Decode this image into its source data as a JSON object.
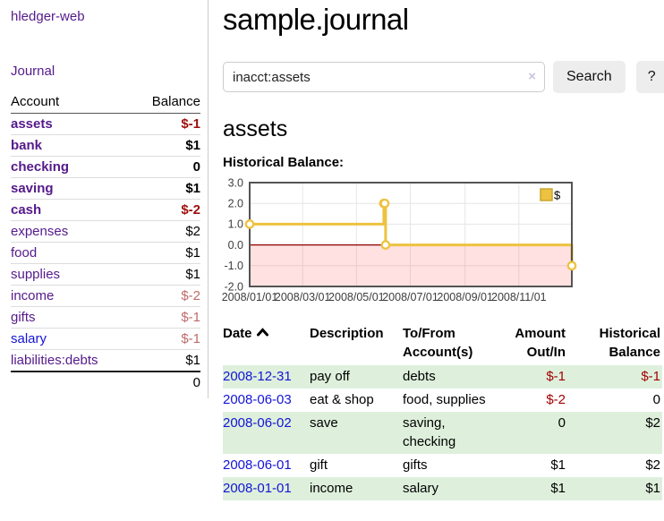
{
  "colors": {
    "link_visited_purple": "#551a8b",
    "link_blue": "#1414d6",
    "negative_strong": "#9e0e0e",
    "negative_muted": "#c06a6a",
    "negative_table": "#a40000",
    "row_stripe_green": "#def0dc",
    "series_gold": "#edc240",
    "zero_line_red": "#8b0000",
    "button_gray": "#ededed"
  },
  "sidebar": {
    "app_title": "hledger-web",
    "journal_label": "Journal",
    "accounts_table": {
      "col_account": "Account",
      "col_balance": "Balance",
      "rows": [
        {
          "name": "assets",
          "balance": "$-1",
          "depth": 1,
          "emphasized": true
        },
        {
          "name": "bank",
          "balance": "$1",
          "depth": 2,
          "emphasized": true
        },
        {
          "name": "checking",
          "balance": "0",
          "depth": 3,
          "emphasized": true
        },
        {
          "name": "saving",
          "balance": "$1",
          "depth": 3,
          "emphasized": true
        },
        {
          "name": "cash",
          "balance": "$-2",
          "depth": 2,
          "emphasized": true
        },
        {
          "name": "expenses",
          "balance": "$2",
          "depth": 1,
          "emphasized": false
        },
        {
          "name": "food",
          "balance": "$1",
          "depth": 2,
          "emphasized": false
        },
        {
          "name": "supplies",
          "balance": "$1",
          "depth": 2,
          "emphasized": false
        },
        {
          "name": "income",
          "balance": "$-2",
          "depth": 1,
          "emphasized": false
        },
        {
          "name": "gifts",
          "balance": "$-1",
          "depth": 2,
          "emphasized": false
        },
        {
          "name": "salary",
          "balance": "$-1",
          "depth": 2,
          "emphasized": false
        },
        {
          "name": "liabilities:debts",
          "balance": "$1",
          "depth": 1,
          "emphasized": false
        }
      ],
      "total": "0"
    }
  },
  "main": {
    "title": "sample.journal",
    "search": {
      "value": "inacct:assets",
      "clear_icon": "×",
      "button_label": "Search",
      "help_label": "?"
    },
    "account_heading": "assets",
    "chart_title": "Historical Balance:"
  },
  "chart_data": {
    "type": "line",
    "step": true,
    "title": "Historical Balance:",
    "xlabel": "",
    "ylabel": "",
    "x_range": [
      "2008-01-01",
      "2008-12-31"
    ],
    "ylim": [
      -2,
      3
    ],
    "grid": true,
    "legend_position": "top-right",
    "legend_label": "$",
    "series": [
      {
        "name": "$",
        "color": "#edc240",
        "points": [
          [
            "2008-01-01",
            1
          ],
          [
            "2008-06-01",
            2
          ],
          [
            "2008-06-02",
            2
          ],
          [
            "2008-06-03",
            0
          ],
          [
            "2008-12-31",
            -1
          ]
        ]
      }
    ],
    "y_ticks": [
      {
        "v": 3,
        "label": "3.0"
      },
      {
        "v": 2,
        "label": "2.0"
      },
      {
        "v": 1,
        "label": "1.0"
      },
      {
        "v": 0,
        "label": "0.0"
      },
      {
        "v": -1,
        "label": "-1.0"
      },
      {
        "v": -2,
        "label": "-2.0"
      }
    ],
    "x_ticks": [
      {
        "date": "2008-01-01",
        "label": "2008/01/01"
      },
      {
        "date": "2008-03-01",
        "label": "2008/03/01"
      },
      {
        "date": "2008-05-01",
        "label": "2008/05/01"
      },
      {
        "date": "2008-07-01",
        "label": "2008/07/01"
      },
      {
        "date": "2008-09-01",
        "label": "2008/09/01"
      },
      {
        "date": "2008-11-01",
        "label": "2008/11/01"
      }
    ],
    "negative_region_fill": "rgba(255,70,70,0.16)",
    "zero_line_color": "#8b0000"
  },
  "register_table": {
    "headers": {
      "date": "Date",
      "description": "Description",
      "accounts": "To/From Account(s)",
      "amount": "Amount Out/In",
      "balance": "Historical Balance"
    },
    "rows": [
      {
        "date": "2008-12-31",
        "description": "pay off",
        "accounts": "debts",
        "amount": "$-1",
        "balance": "$-1"
      },
      {
        "date": "2008-06-03",
        "description": "eat & shop",
        "accounts": "food, supplies",
        "amount": "$-2",
        "balance": "0"
      },
      {
        "date": "2008-06-02",
        "description": "save",
        "accounts": "saving, checking",
        "amount": "0",
        "balance": "$2"
      },
      {
        "date": "2008-06-01",
        "description": "gift",
        "accounts": "gifts",
        "amount": "$1",
        "balance": "$2"
      },
      {
        "date": "2008-01-01",
        "description": "income",
        "accounts": "salary",
        "amount": "$1",
        "balance": "$1"
      }
    ]
  }
}
